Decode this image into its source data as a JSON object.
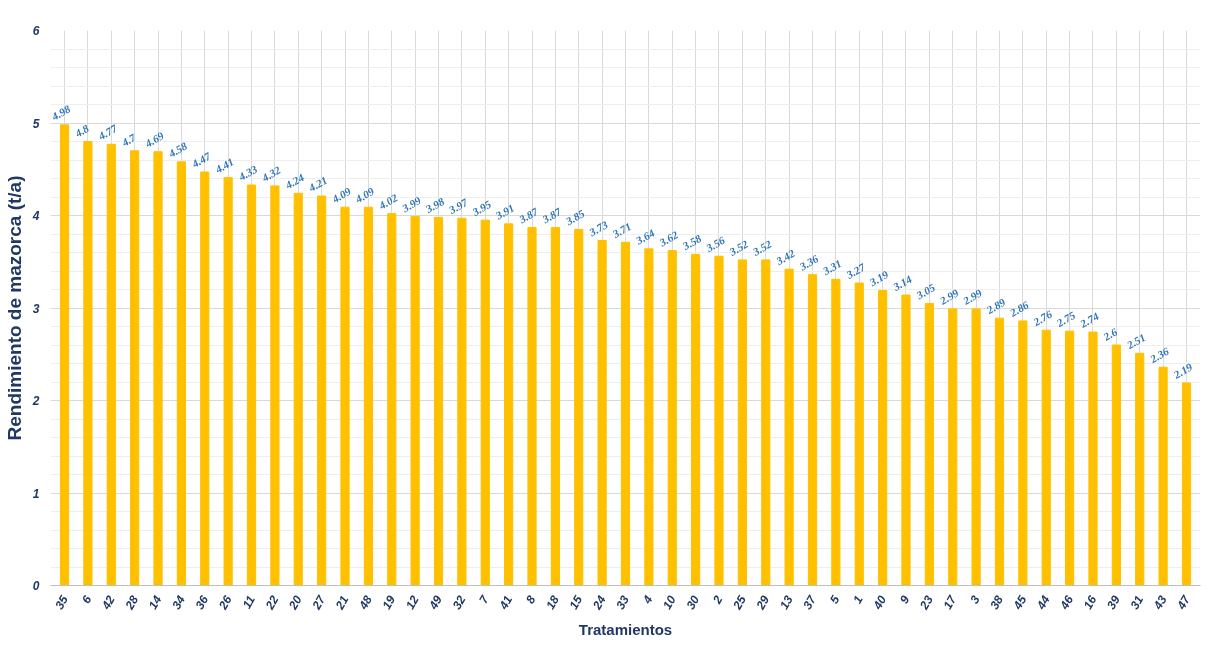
{
  "chart_data": {
    "type": "bar",
    "xlabel": "Tratamientos",
    "ylabel": "Rendimiento de mazorca (t/a)",
    "categories": [
      "35",
      "6",
      "42",
      "28",
      "14",
      "34",
      "36",
      "26",
      "11",
      "22",
      "20",
      "27",
      "21",
      "48",
      "19",
      "12",
      "49",
      "32",
      "7",
      "41",
      "8",
      "18",
      "15",
      "24",
      "33",
      "4",
      "10",
      "30",
      "2",
      "25",
      "29",
      "13",
      "37",
      "5",
      "1",
      "40",
      "9",
      "23",
      "17",
      "3",
      "38",
      "45",
      "44",
      "46",
      "16",
      "39",
      "31",
      "43",
      "47"
    ],
    "values": [
      4.98,
      4.8,
      4.77,
      4.7,
      4.69,
      4.58,
      4.47,
      4.41,
      4.33,
      4.32,
      4.24,
      4.21,
      4.09,
      4.09,
      4.02,
      3.99,
      3.98,
      3.97,
      3.95,
      3.91,
      3.87,
      3.87,
      3.85,
      3.73,
      3.71,
      3.64,
      3.62,
      3.58,
      3.56,
      3.52,
      3.52,
      3.42,
      3.36,
      3.31,
      3.27,
      3.19,
      3.14,
      3.05,
      2.99,
      2.99,
      2.89,
      2.86,
      2.76,
      2.75,
      2.74,
      2.6,
      2.51,
      2.36,
      2.19
    ],
    "color": "#ffc000",
    "ylim": [
      0,
      6
    ],
    "yticks": [
      0,
      1,
      2,
      3,
      4,
      5,
      6
    ],
    "grid": true,
    "data_labels": true
  }
}
